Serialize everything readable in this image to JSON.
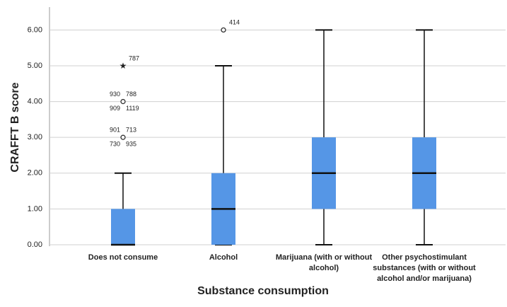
{
  "chart_data": {
    "type": "boxplot",
    "y_label": "CRAFFT B score",
    "x_label": "Substance consumption",
    "categories": [
      "Does not consume",
      "Alcohol",
      "Marijuana (with or without alcohol)",
      "Other psychostimulant substances (with or without alcohol and/or marijuana)"
    ],
    "box_color": "#5596e6",
    "grid": true,
    "ylim": [
      -0.04,
      6.6
    ],
    "yticks": [
      {
        "value": 0,
        "label": "0.00"
      },
      {
        "value": 1,
        "label": "1.00"
      },
      {
        "value": 2,
        "label": "2.00"
      },
      {
        "value": 3,
        "label": "3.00"
      },
      {
        "value": 4,
        "label": "4.00"
      },
      {
        "value": 5,
        "label": "5.00"
      },
      {
        "value": 6,
        "label": "6.00"
      }
    ],
    "boxes": [
      {
        "min": 0,
        "q1": 0,
        "median": 0,
        "q3": 1,
        "max": 2,
        "outliers": [
          {
            "value": 3,
            "labels": [
              "901",
              "713",
              "730",
              "935"
            ]
          },
          {
            "value": 4,
            "labels": [
              "930",
              "788",
              "909",
              "1119"
            ]
          }
        ],
        "extremes": [
          {
            "value": 5,
            "labels": [
              "787"
            ]
          }
        ]
      },
      {
        "min": 0,
        "q1": 0,
        "median": 1,
        "q3": 2,
        "max": 5,
        "outliers": [
          {
            "value": 6,
            "labels": [
              "414"
            ]
          }
        ],
        "extremes": []
      },
      {
        "min": 0,
        "q1": 1,
        "median": 2,
        "q3": 3,
        "max": 6,
        "outliers": [],
        "extremes": []
      },
      {
        "min": 0,
        "q1": 1,
        "median": 2,
        "q3": 3,
        "max": 6,
        "outliers": [],
        "extremes": []
      }
    ]
  }
}
